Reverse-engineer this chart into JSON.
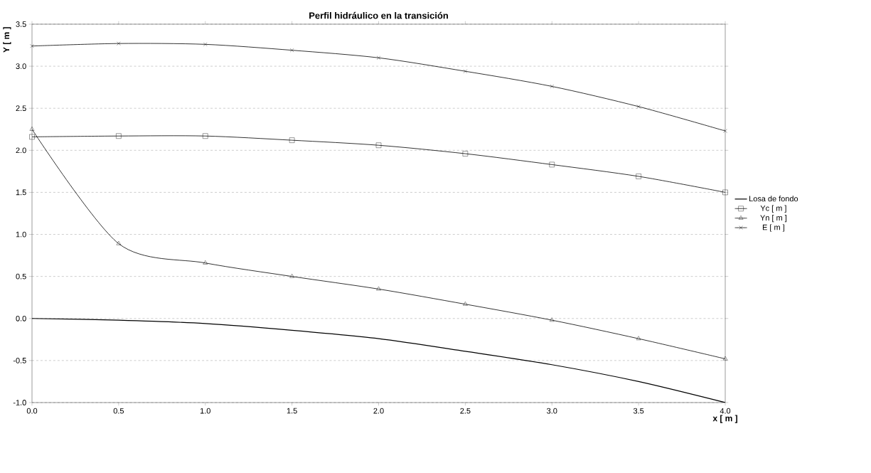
{
  "chart_data": {
    "type": "line",
    "title": "Perfil hidráulico en la transición",
    "xlabel": "x [ m ]",
    "ylabel": "Y [ m ]",
    "x": [
      0,
      0.5,
      1.0,
      1.5,
      2.0,
      2.5,
      3.0,
      3.5,
      4.0
    ],
    "series": [
      {
        "name": "Losa de fondo",
        "color": "#000000",
        "marker": "none",
        "values": [
          0,
          -0.02,
          -0.06,
          -0.14,
          -0.24,
          -0.39,
          -0.55,
          -0.75,
          -1.0
        ]
      },
      {
        "name": "Yc [ m ]",
        "color": "#000000",
        "marker": "square",
        "values": [
          2.16,
          2.17,
          2.17,
          2.12,
          2.06,
          1.96,
          1.83,
          1.69,
          1.5
        ]
      },
      {
        "name": "Yn [ m ]",
        "color": "#000000",
        "marker": "triangle",
        "values": [
          2.25,
          0.89,
          0.66,
          0.5,
          0.35,
          0.17,
          -0.02,
          -0.24,
          -0.48
        ]
      },
      {
        "name": "E [ m ]",
        "color": "#000000",
        "marker": "cross",
        "values": [
          3.24,
          3.27,
          3.26,
          3.19,
          3.1,
          2.94,
          2.76,
          2.52,
          2.23
        ]
      }
    ],
    "xlim": [
      0,
      4.0
    ],
    "xticks": [
      {
        "value": 0,
        "label": "0.0"
      },
      0.5,
      {
        "value": 1,
        "label": "1.0"
      },
      1.5,
      {
        "value": 2,
        "label": "2.0"
      },
      2.5,
      {
        "value": 3,
        "label": "3.0"
      },
      3.5,
      {
        "value": 4,
        "label": "4.0"
      }
    ],
    "ylim": [
      -1.0,
      3.5
    ],
    "yticks": [
      {
        "value": -1,
        "label": "-1.0"
      },
      -0.5,
      {
        "value": 0,
        "label": "0.0"
      },
      0.5,
      {
        "value": 1,
        "label": "1.0"
      },
      1.5,
      {
        "value": 2,
        "label": "2.0"
      },
      2.5,
      {
        "value": 3,
        "label": "3.0"
      },
      3.5
    ],
    "grid": "y",
    "legend": "right",
    "line_style": "solid"
  }
}
